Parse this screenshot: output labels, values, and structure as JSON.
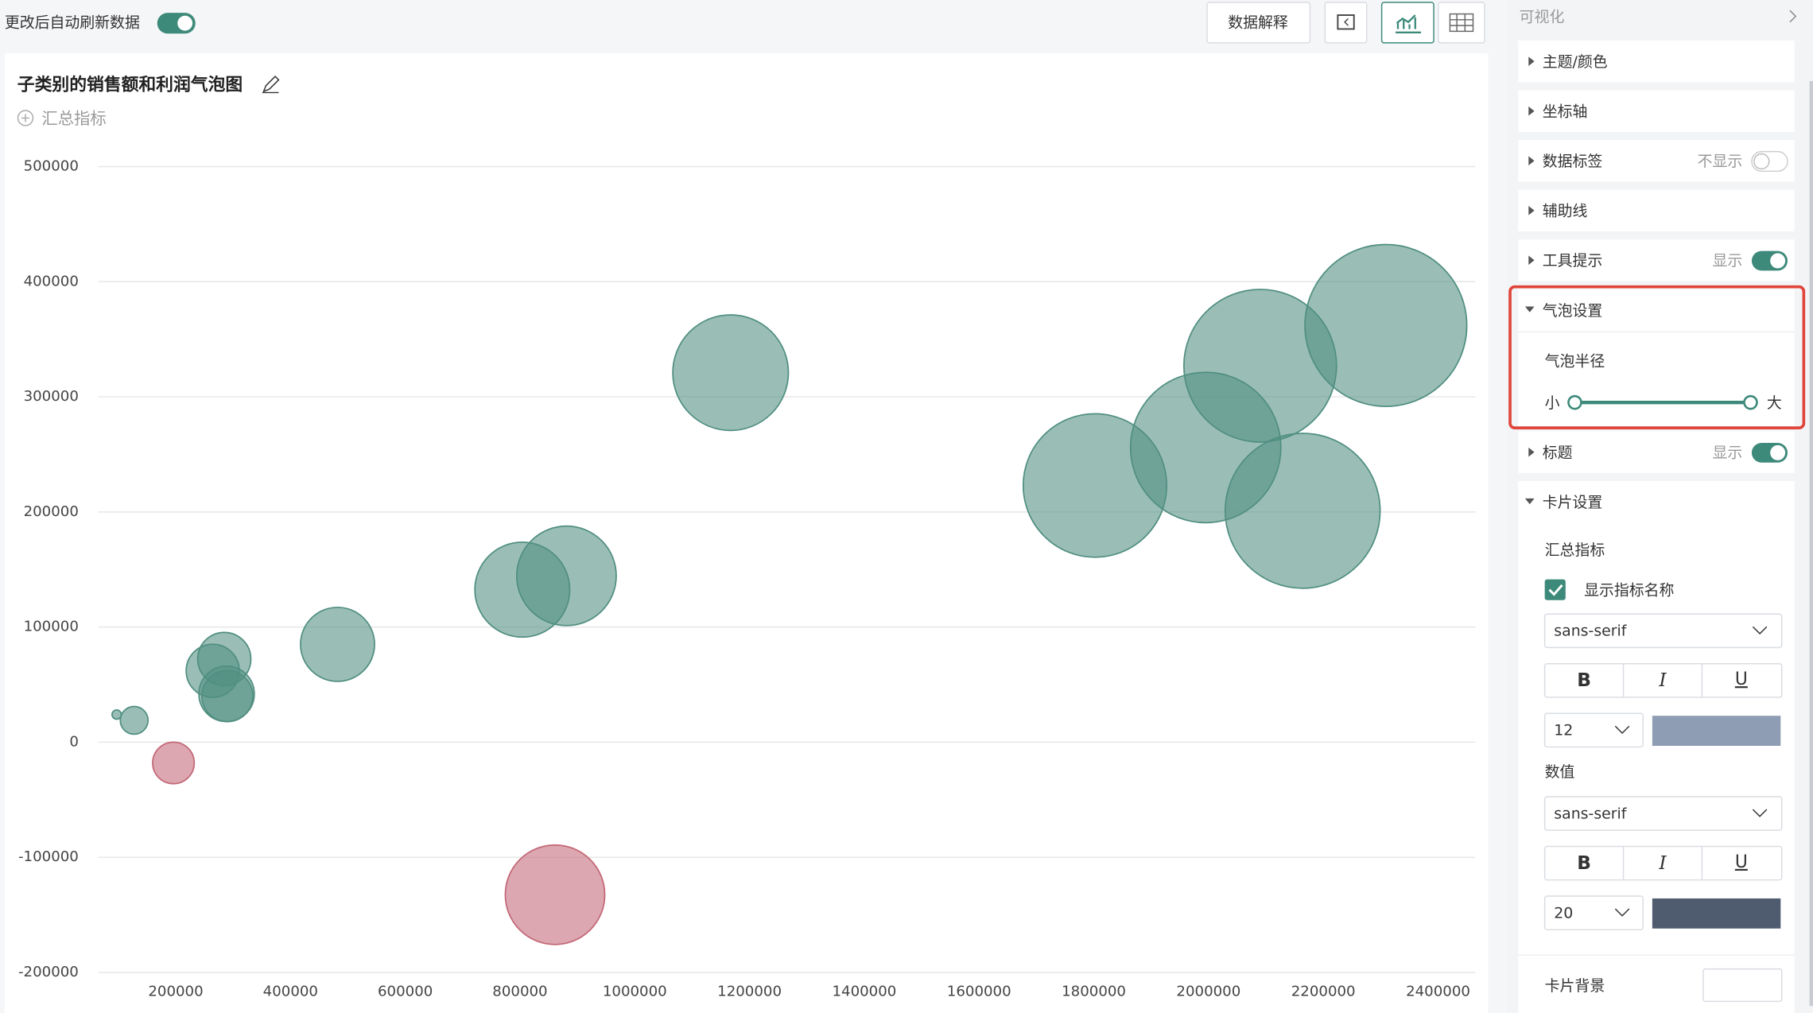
{
  "toolbar": {
    "auto_refresh": "更改后自动刷新数据",
    "explain_button": "数据解释"
  },
  "chart_data": {
    "type": "scatter",
    "title": "子类别的销售额和利润气泡图",
    "summary_link": "汇总指标",
    "x": [
      97000,
      127500,
      196000,
      284600,
      264500,
      288600,
      290000,
      482000,
      804000,
      881000,
      861000,
      1167000,
      1802000,
      1995000,
      2090000,
      2164000,
      2309000
    ],
    "y": [
      24000,
      19000,
      -18000,
      72300,
      62000,
      42000,
      40000,
      85000,
      132500,
      144500,
      -132500,
      321000,
      223000,
      256000,
      327000,
      201000,
      362000
    ],
    "sizes": [
      7500,
      67600,
      152000,
      248000,
      248000,
      270000,
      228000,
      481000,
      790000,
      869000,
      869000,
      1173000,
      1806000,
      1985000,
      2045000,
      2107000,
      2300000
    ],
    "colors": [
      "#5fa898",
      "#5fa898",
      "#e57a8c",
      "#5fa898",
      "#5fa898",
      "#5fa898",
      "#5fa898",
      "#5fa898",
      "#5fa898",
      "#5fa898",
      "#e57a8c",
      "#5fa898",
      "#5fa898",
      "#5fa898",
      "#5fa898",
      "#5fa898",
      "#5fa898"
    ],
    "xlim": [
      65000,
      2465000
    ],
    "ylim": [
      -200000,
      500000
    ],
    "xticks": [
      200000,
      400000,
      600000,
      800000,
      1000000,
      1200000,
      1400000,
      1600000,
      1800000,
      2000000,
      2200000,
      2400000
    ],
    "yticks": [
      -200000,
      -100000,
      0,
      100000,
      200000,
      300000,
      400000,
      500000
    ],
    "grid": true
  },
  "panel": {
    "title": "可视化",
    "theme": "主题/颜色",
    "axis": "坐标轴",
    "data_label": "数据标签",
    "data_label_state": "不显示",
    "guide_line": "辅助线",
    "tooltip": "工具提示",
    "tooltip_state": "显示",
    "bubble": "气泡设置",
    "bubble_radius": "气泡半径",
    "small": "小",
    "large": "大",
    "title_row": "标题",
    "title_state": "显示",
    "card": "卡片设置",
    "summary": "汇总指标",
    "show_name": "显示指标名称",
    "font1": "sans-serif",
    "bold": "B",
    "italic": "I",
    "underline": "U",
    "size1": "12",
    "value": "数值",
    "font2": "sans-serif",
    "size2": "20",
    "card_bg": "卡片背景"
  }
}
